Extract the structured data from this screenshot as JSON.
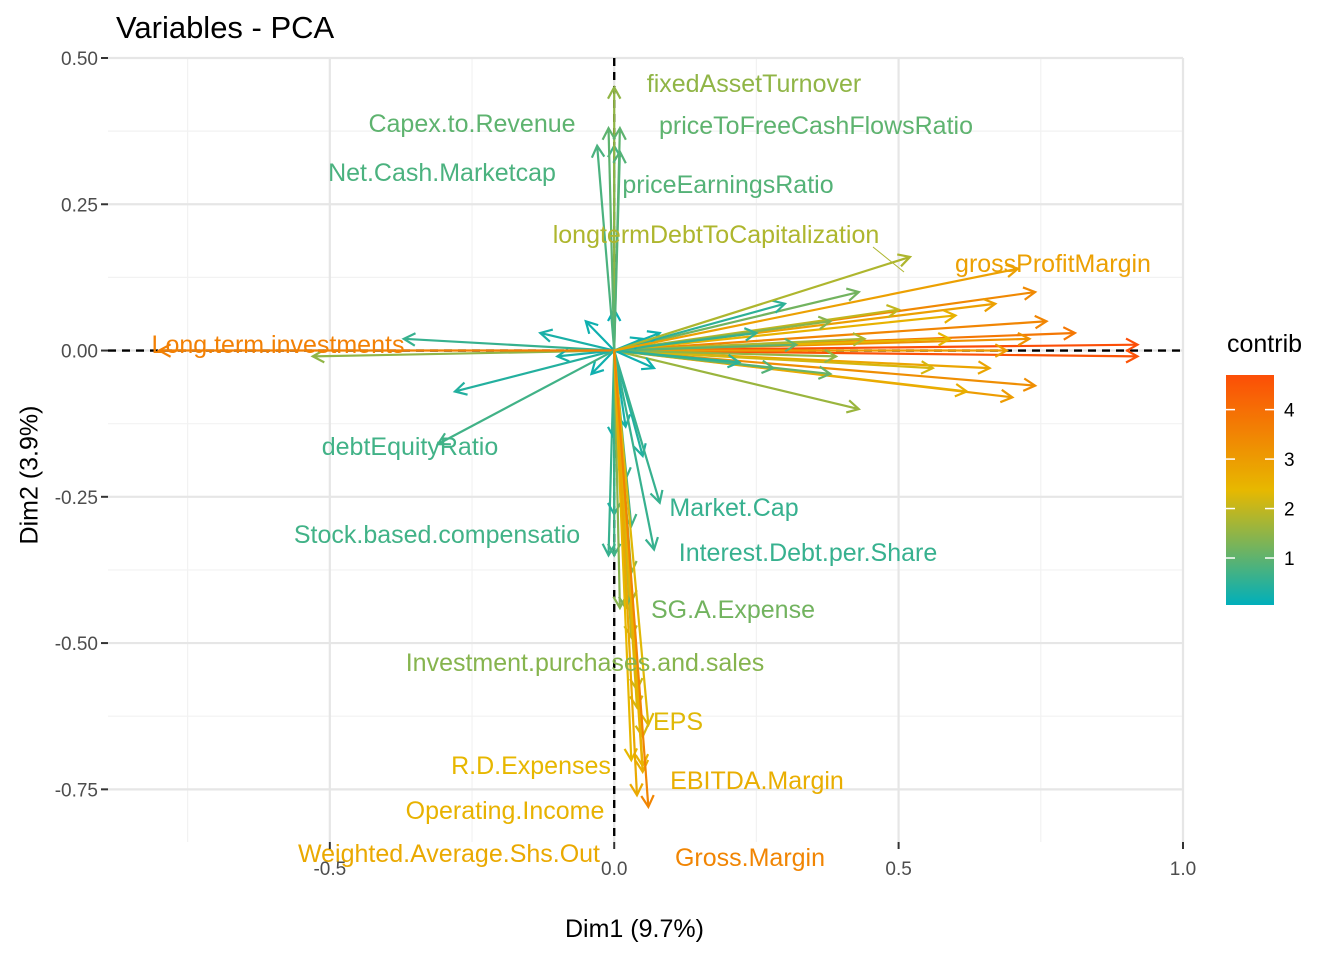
{
  "chart_data": {
    "type": "scatter",
    "title": "Variables - PCA",
    "xlabel": "Dim1 (9.7%)",
    "ylabel": "Dim2 (3.9%)",
    "xlim": [
      -0.89,
      1.0
    ],
    "ylim": [
      -0.84,
      0.5
    ],
    "x_ticks": [
      -0.5,
      0.0,
      0.5,
      1.0
    ],
    "x_tick_labels": [
      "-0.5",
      "0.0",
      "0.5",
      "1.0"
    ],
    "y_ticks": [
      0.5,
      0.25,
      0.0,
      -0.25,
      -0.5,
      -0.75
    ],
    "y_tick_labels": [
      "0.50",
      "0.25",
      "0.00",
      "-0.25",
      "-0.50",
      "-0.75"
    ],
    "grid": true,
    "legend": {
      "title": "contrib",
      "position": "right",
      "ticks": [
        4,
        3,
        2,
        1
      ],
      "range": [
        0.05,
        4.7
      ],
      "colors": [
        "#00AFBB",
        "#E7B800",
        "#FC4E07"
      ]
    },
    "labeled_arrows": [
      {
        "name": "fixedAssetTurnover",
        "x": 0.0,
        "y": 0.45,
        "contrib": 1.5
      },
      {
        "name": "priceToFreeCashFlowsRatio",
        "x": 0.01,
        "y": 0.38,
        "contrib": 1.0
      },
      {
        "name": "Capex.to.Revenue",
        "x": -0.01,
        "y": 0.38,
        "contrib": 1.0
      },
      {
        "name": "Net.Cash.Marketcap",
        "x": -0.03,
        "y": 0.35,
        "contrib": 0.8
      },
      {
        "name": "priceEarningsRatio",
        "x": 0.01,
        "y": 0.34,
        "contrib": 0.9
      },
      {
        "name": "longtermDebtToCapitalization",
        "x": 0.52,
        "y": 0.16,
        "contrib": 1.8
      },
      {
        "name": "grossProfitMargin",
        "x": 0.71,
        "y": 0.14,
        "contrib": 2.9
      },
      {
        "name": "Long.term.investments",
        "x": -0.8,
        "y": 0.0,
        "contrib": 3.6
      },
      {
        "name": "debtEquityRatio",
        "x": -0.31,
        "y": -0.16,
        "contrib": 0.7
      },
      {
        "name": "Market.Cap",
        "x": 0.08,
        "y": -0.26,
        "contrib": 0.6
      },
      {
        "name": "Stock.based.compensatio",
        "x": 0.0,
        "y": -0.35,
        "contrib": 0.7
      },
      {
        "name": "Interest.Debt.per.Share",
        "x": 0.07,
        "y": -0.34,
        "contrib": 0.6
      },
      {
        "name": "SG.A.Expense",
        "x": 0.02,
        "y": -0.44,
        "contrib": 1.2
      },
      {
        "name": "Investment.purchases.and.sales",
        "x": 0.01,
        "y": -0.44,
        "contrib": 1.4
      },
      {
        "name": "EPS",
        "x": 0.06,
        "y": -0.64,
        "contrib": 2.3
      },
      {
        "name": "R.D.Expenses",
        "x": 0.03,
        "y": -0.7,
        "contrib": 2.4
      },
      {
        "name": "EBITDA.Margin",
        "x": 0.05,
        "y": -0.72,
        "contrib": 2.6
      },
      {
        "name": "Operating.Income",
        "x": 0.05,
        "y": -0.71,
        "contrib": 2.5
      },
      {
        "name": "Weighted.Average.Shs.Out",
        "x": 0.04,
        "y": -0.76,
        "contrib": 2.7
      },
      {
        "name": "Gross.Margin",
        "x": 0.06,
        "y": -0.78,
        "contrib": 3.5
      }
    ],
    "unlabeled_arrows": [
      {
        "x": 0.92,
        "y": 0.01,
        "contrib": 4.7
      },
      {
        "x": 0.92,
        "y": -0.01,
        "contrib": 4.6
      },
      {
        "x": 0.81,
        "y": 0.03,
        "contrib": 3.8
      },
      {
        "x": 0.76,
        "y": 0.05,
        "contrib": 3.5
      },
      {
        "x": 0.74,
        "y": 0.1,
        "contrib": 3.4
      },
      {
        "x": 0.74,
        "y": -0.06,
        "contrib": 3.3
      },
      {
        "x": 0.73,
        "y": 0.02,
        "contrib": 3.2
      },
      {
        "x": 0.7,
        "y": -0.08,
        "contrib": 3.0
      },
      {
        "x": 0.67,
        "y": 0.08,
        "contrib": 2.9
      },
      {
        "x": 0.69,
        "y": 0.0,
        "contrib": 3.0
      },
      {
        "x": 0.66,
        "y": -0.03,
        "contrib": 2.8
      },
      {
        "x": 0.62,
        "y": -0.07,
        "contrib": 2.6
      },
      {
        "x": 0.6,
        "y": 0.06,
        "contrib": 2.5
      },
      {
        "x": 0.59,
        "y": 0.02,
        "contrib": 2.4
      },
      {
        "x": 0.56,
        "y": -0.03,
        "contrib": 2.2
      },
      {
        "x": 0.5,
        "y": 0.07,
        "contrib": 2.0
      },
      {
        "x": 0.44,
        "y": 0.02,
        "contrib": 1.8
      },
      {
        "x": 0.43,
        "y": -0.1,
        "contrib": 1.6
      },
      {
        "x": 0.39,
        "y": -0.01,
        "contrib": 1.5
      },
      {
        "x": 0.38,
        "y": 0.05,
        "contrib": 1.4
      },
      {
        "x": 0.43,
        "y": 0.1,
        "contrib": 1.2
      },
      {
        "x": 0.38,
        "y": -0.04,
        "contrib": 1.1
      },
      {
        "x": 0.32,
        "y": 0.01,
        "contrib": 1.0
      },
      {
        "x": 0.28,
        "y": -0.03,
        "contrib": 0.9
      },
      {
        "x": 0.3,
        "y": 0.08,
        "contrib": 0.5
      },
      {
        "x": 0.25,
        "y": 0.03,
        "contrib": 0.6
      },
      {
        "x": 0.22,
        "y": -0.02,
        "contrib": 0.5
      },
      {
        "x": -0.53,
        "y": -0.01,
        "contrib": 1.5
      },
      {
        "x": -0.37,
        "y": 0.02,
        "contrib": 0.6
      },
      {
        "x": -0.28,
        "y": -0.07,
        "contrib": 0.4
      },
      {
        "x": -0.13,
        "y": 0.03,
        "contrib": 0.3
      },
      {
        "x": -0.1,
        "y": -0.01,
        "contrib": 0.3
      },
      {
        "x": -0.05,
        "y": 0.05,
        "contrib": 0.2
      },
      {
        "x": -0.04,
        "y": -0.04,
        "contrib": 0.2
      },
      {
        "x": 0.08,
        "y": 0.03,
        "contrib": 0.2
      },
      {
        "x": 0.07,
        "y": -0.03,
        "contrib": 0.2
      },
      {
        "x": 0.05,
        "y": 0.02,
        "contrib": 0.2
      },
      {
        "x": 0.0,
        "y": 0.07,
        "contrib": 0.1
      },
      {
        "x": 0.02,
        "y": -0.22,
        "contrib": 0.6
      },
      {
        "x": 0.03,
        "y": -0.3,
        "contrib": 0.7
      },
      {
        "x": 0.05,
        "y": -0.18,
        "contrib": 0.4
      },
      {
        "x": 0.02,
        "y": -0.13,
        "contrib": 0.3
      },
      {
        "x": -0.01,
        "y": -0.35,
        "contrib": 0.6
      },
      {
        "x": 0.03,
        "y": -0.38,
        "contrib": 1.4
      },
      {
        "x": 0.04,
        "y": -0.58,
        "contrib": 2.1
      },
      {
        "x": 0.03,
        "y": -0.49,
        "contrib": 1.9
      },
      {
        "x": 0.05,
        "y": -0.66,
        "contrib": 2.2
      },
      {
        "x": 0.04,
        "y": -0.61,
        "contrib": 2.2
      },
      {
        "x": 0.03,
        "y": -0.43,
        "contrib": 1.7
      },
      {
        "x": 0.0,
        "y": -0.15,
        "contrib": 0.3
      },
      {
        "x": 0.0,
        "y": -0.28,
        "contrib": 0.4
      },
      {
        "x": 0.0,
        "y": 0.35,
        "contrib": 0.7
      }
    ]
  }
}
